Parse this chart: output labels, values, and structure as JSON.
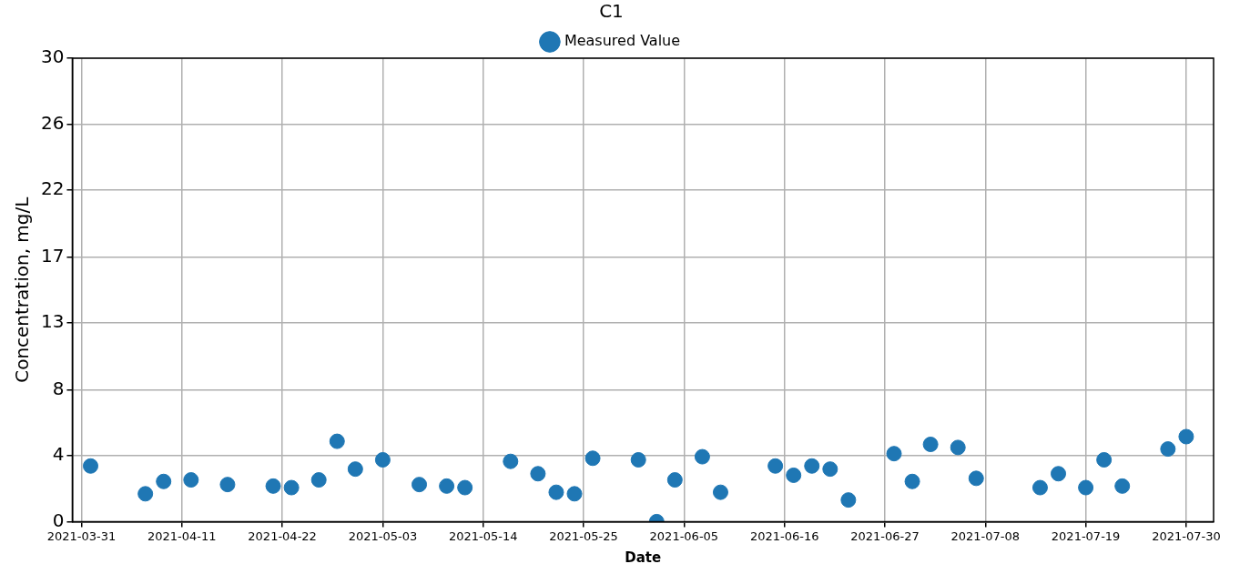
{
  "chart_data": {
    "type": "scatter",
    "legend_title": "C1",
    "xlabel": "Date",
    "ylabel": "Concentration, mg/L",
    "x": [
      "2021-04-01",
      "2021-04-07",
      "2021-04-09",
      "2021-04-12",
      "2021-04-16",
      "2021-04-21",
      "2021-04-23",
      "2021-04-26",
      "2021-04-28",
      "2021-04-30",
      "2021-05-03",
      "2021-05-07",
      "2021-05-10",
      "2021-05-12",
      "2021-05-17",
      "2021-05-20",
      "2021-05-22",
      "2021-05-24",
      "2021-05-26",
      "2021-05-31",
      "2021-06-02",
      "2021-06-04",
      "2021-06-07",
      "2021-06-09",
      "2021-06-15",
      "2021-06-17",
      "2021-06-19",
      "2021-06-21",
      "2021-06-23",
      "2021-06-28",
      "2021-06-30",
      "2021-07-02",
      "2021-07-05",
      "2021-07-07",
      "2021-07-14",
      "2021-07-16",
      "2021-07-19",
      "2021-07-21",
      "2021-07-23",
      "2021-07-28",
      "2021-07-30"
    ],
    "series": [
      {
        "name": "Measured Value",
        "color": "#1f77b4",
        "values": [
          3.6,
          1.8,
          2.6,
          2.7,
          2.4,
          2.3,
          2.2,
          2.7,
          5.2,
          3.4,
          4.0,
          2.4,
          2.3,
          2.2,
          3.9,
          3.1,
          1.9,
          1.8,
          4.1,
          4.0,
          0,
          2.7,
          4.2,
          1.9,
          3.6,
          3.0,
          3.6,
          3.4,
          1.4,
          4.4,
          2.6,
          5.0,
          4.8,
          2.8,
          2.2,
          3.1,
          2.2,
          4.0,
          2.3,
          4.7,
          5.5
        ]
      }
    ],
    "xlim": [
      "2021-03-30",
      "2021-08-02"
    ],
    "xticks": [
      "2021-03-31",
      "2021-04-11",
      "2021-04-22",
      "2021-05-03",
      "2021-05-14",
      "2021-05-25",
      "2021-06-05",
      "2021-06-16",
      "2021-06-27",
      "2021-07-08",
      "2021-07-19",
      "2021-07-30"
    ],
    "ylim": [
      0,
      30
    ],
    "yticks": [
      0,
      {
        "value": 4.29,
        "label": "4"
      },
      {
        "value": 8.5,
        "label": "8"
      },
      {
        "value": 12.86,
        "label": "13"
      },
      {
        "value": 17.14,
        "label": "17"
      },
      {
        "value": 21.5,
        "label": "22"
      },
      {
        "value": 25.71,
        "label": "26"
      },
      30
    ],
    "grid": true,
    "legend": "top",
    "marker": "circle"
  }
}
